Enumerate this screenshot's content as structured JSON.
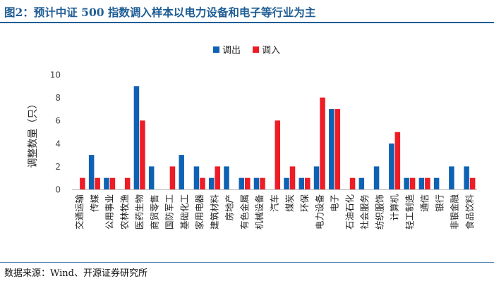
{
  "figure": {
    "title": "图2：预计中证 500 指数调入样本以电力设备和电子等行业为主",
    "source": "数据来源：Wind、开源证券研究所"
  },
  "chart_data": {
    "type": "bar",
    "title": "",
    "ylabel": "调整数量（只）",
    "xlabel": "",
    "ylim": [
      0,
      10
    ],
    "yticks": [
      0,
      2,
      4,
      6,
      8,
      10
    ],
    "grid": false,
    "legend_position": "top-center",
    "categories": [
      "交通运输",
      "传媒",
      "公用事业",
      "农林牧渔",
      "医药生物",
      "商贸零售",
      "国防军工",
      "基础化工",
      "家用电器",
      "建筑材料",
      "房地产",
      "有色金属",
      "机械设备",
      "汽车",
      "煤炭",
      "环保",
      "电力设备",
      "电子",
      "石油石化",
      "社会服务",
      "纺织服饰",
      "计算机",
      "轻工制造",
      "通信",
      "银行",
      "非银金融",
      "食品饮料"
    ],
    "series": [
      {
        "name": "调出",
        "color": "#0f62b3",
        "values": [
          0,
          3,
          1,
          0,
          9,
          2,
          0,
          3,
          2,
          1,
          2,
          1,
          1,
          0,
          1,
          1,
          2,
          7,
          0,
          1,
          2,
          4,
          1,
          1,
          1,
          2,
          2
        ]
      },
      {
        "name": "调入",
        "color": "#ee1c25",
        "values": [
          1,
          1,
          1,
          1,
          6,
          0,
          2,
          0,
          1,
          2,
          0,
          1,
          1,
          6,
          2,
          1,
          8,
          7,
          1,
          0,
          0,
          5,
          1,
          1,
          0,
          0,
          1
        ]
      }
    ]
  }
}
